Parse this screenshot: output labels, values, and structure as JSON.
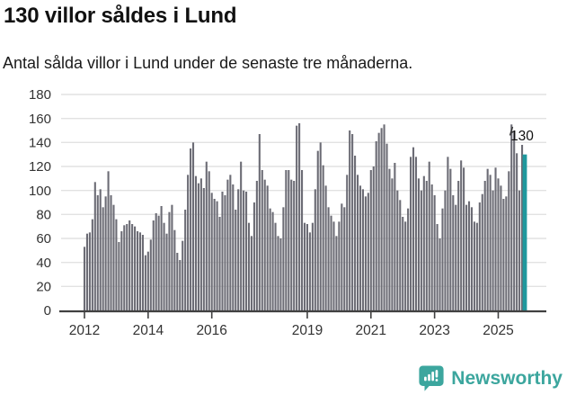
{
  "header": {
    "title": "130 villor såldes i Lund",
    "subtitle": "Antal sålda villor i Lund under de senaste tre månaderna."
  },
  "chart_data": {
    "type": "bar",
    "title": "130 villor såldes i Lund",
    "subtitle": "Antal sålda villor i Lund under de senaste tre månaderna.",
    "frequency": "monthly",
    "start_year": 2012,
    "values": [
      53,
      64,
      65,
      76,
      107,
      96,
      101,
      86,
      95,
      116,
      96,
      88,
      76,
      57,
      66,
      71,
      72,
      75,
      72,
      70,
      66,
      65,
      63,
      46,
      49,
      59,
      75,
      81,
      79,
      87,
      73,
      64,
      82,
      88,
      67,
      48,
      42,
      58,
      84,
      113,
      135,
      140,
      112,
      106,
      110,
      102,
      124,
      116,
      98,
      93,
      91,
      78,
      99,
      96,
      109,
      113,
      105,
      84,
      101,
      124,
      100,
      99,
      73,
      62,
      90,
      108,
      147,
      117,
      109,
      104,
      85,
      82,
      73,
      62,
      60,
      86,
      117,
      117,
      109,
      108,
      154,
      156,
      117,
      73,
      72,
      65,
      73,
      101,
      133,
      140,
      121,
      104,
      86,
      79,
      74,
      62,
      74,
      89,
      86,
      113,
      150,
      147,
      129,
      113,
      104,
      101,
      95,
      98,
      117,
      120,
      141,
      148,
      152,
      155,
      139,
      118,
      110,
      123,
      100,
      92,
      78,
      74,
      85,
      128,
      136,
      128,
      110,
      100,
      112,
      108,
      124,
      105,
      96,
      72,
      60,
      85,
      100,
      128,
      118,
      96,
      88,
      108,
      125,
      119,
      88,
      91,
      86,
      74,
      73,
      90,
      97,
      108,
      118,
      113,
      100,
      119,
      110,
      104,
      93,
      95,
      116,
      155,
      149,
      131,
      100,
      138,
      130
    ],
    "highlight": {
      "index": 166,
      "value": 130,
      "label": "130"
    },
    "ylim": [
      0,
      180
    ],
    "yticks": [
      0,
      20,
      40,
      60,
      80,
      100,
      120,
      140,
      160,
      180
    ],
    "xticks": [
      {
        "year": 2012,
        "label": "2012"
      },
      {
        "year": 2014,
        "label": "2014"
      },
      {
        "year": 2016,
        "label": "2016"
      },
      {
        "year": 2019,
        "label": "2019"
      },
      {
        "year": 2021,
        "label": "2021"
      },
      {
        "year": 2023,
        "label": "2023"
      },
      {
        "year": 2025,
        "label": "2025"
      }
    ],
    "grid": true,
    "legend": false
  },
  "colors": {
    "bar": "#6c6c75",
    "highlight": "#1f989d",
    "grid": "#e2e2e2",
    "axis": "#414141",
    "tick_label": "#333333",
    "annotation": "#111111"
  },
  "footer": {
    "brand": "Newsworthy",
    "brand_color": "#3ca69e",
    "logo_icon": "newsworthy-speech-bubble-chart-icon"
  }
}
